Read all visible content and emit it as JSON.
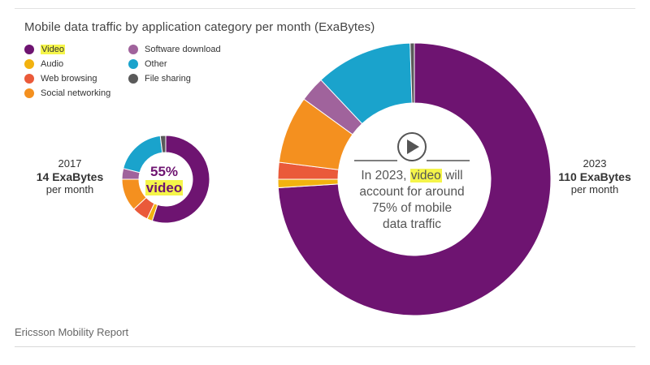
{
  "chart_data": {
    "type": "pie",
    "title": "Mobile data traffic by application category per month (ExaBytes)",
    "legend": [
      {
        "name": "Video",
        "color": "#6e1471",
        "highlight": true
      },
      {
        "name": "Audio",
        "color": "#f2b20f",
        "highlight": false
      },
      {
        "name": "Web browsing",
        "color": "#ea5a3a",
        "highlight": false
      },
      {
        "name": "Social networking",
        "color": "#f4901f",
        "highlight": false
      },
      {
        "name": "Software download",
        "color": "#a0639c",
        "highlight": false
      },
      {
        "name": "Other",
        "color": "#1aa3cc",
        "highlight": false
      },
      {
        "name": "File sharing",
        "color": "#5a5a5a",
        "highlight": false
      }
    ],
    "charts": [
      {
        "year": "2017",
        "total": "14 ExaBytes",
        "unit": "per month",
        "center_value": "55%",
        "center_label": "video",
        "slices": [
          {
            "name": "Video",
            "value": 55
          },
          {
            "name": "Audio",
            "value": 2
          },
          {
            "name": "Web browsing",
            "value": 6
          },
          {
            "name": "Social networking",
            "value": 12
          },
          {
            "name": "Software download",
            "value": 4
          },
          {
            "name": "Other",
            "value": 19
          },
          {
            "name": "File sharing",
            "value": 2
          }
        ]
      },
      {
        "year": "2023",
        "total": "110 ExaBytes",
        "unit": "per month",
        "center_prefix": "In 2023,",
        "center_highlight": "video",
        "center_suffix": "will",
        "center_lines": [
          "account for around",
          "75% of mobile",
          "data traffic"
        ],
        "slices": [
          {
            "name": "Video",
            "value": 74
          },
          {
            "name": "Audio",
            "value": 1
          },
          {
            "name": "Web browsing",
            "value": 2
          },
          {
            "name": "Social networking",
            "value": 8
          },
          {
            "name": "Software download",
            "value": 3
          },
          {
            "name": "Other",
            "value": 11.5
          },
          {
            "name": "File sharing",
            "value": 0.5
          }
        ]
      }
    ]
  },
  "source": "Ericsson Mobility Report",
  "play_icon": "play-icon"
}
